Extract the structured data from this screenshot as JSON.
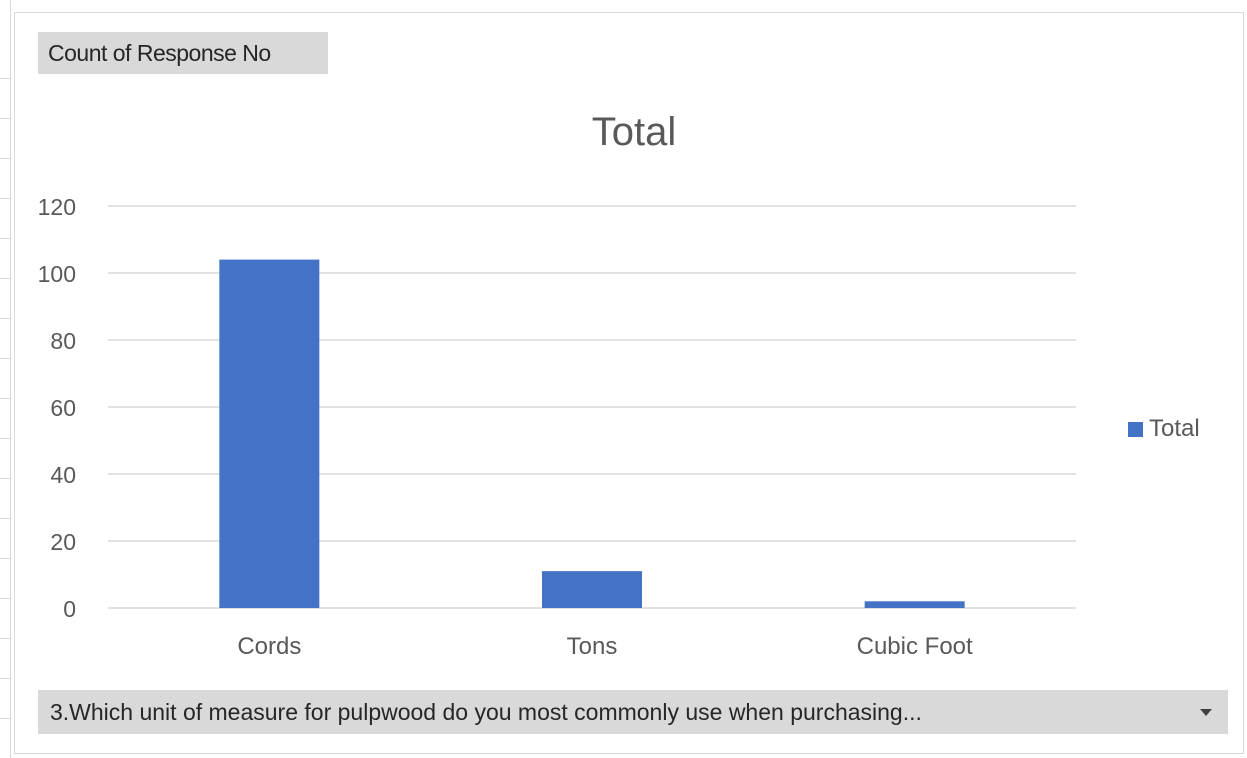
{
  "pivot": {
    "value_field_button": "Count of Response No",
    "axis_field_button": "3.Which unit of measure for pulpwood do you most commonly use when purchasing..."
  },
  "chart_data": {
    "type": "bar",
    "title": "Total",
    "categories": [
      "Cords",
      "Tons",
      "Cubic Foot"
    ],
    "series": [
      {
        "name": "Total",
        "values": [
          104,
          11,
          2
        ],
        "color": "#4472c4"
      }
    ],
    "ylim": [
      0,
      120
    ],
    "yticks": [
      0,
      20,
      40,
      60,
      80,
      100,
      120
    ],
    "grid": true,
    "legend_position": "right",
    "xlabel": "",
    "ylabel": ""
  },
  "icons": {
    "dropdown": "chevron-down-icon"
  }
}
